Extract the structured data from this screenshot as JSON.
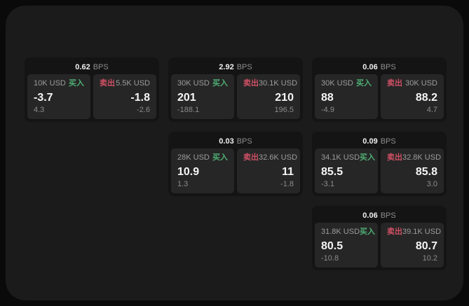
{
  "labels": {
    "bps": "BPS",
    "buy": "买入",
    "sell": "卖出"
  },
  "colors": {
    "buy": "#4fae74",
    "sell": "#cf5065",
    "page_background": "#0a0a0a",
    "window_background": "#1b1b1b",
    "card_background": "#141414",
    "panel_background": "#262626"
  },
  "cards": [
    {
      "grid": {
        "row": 1,
        "col": 1
      },
      "bps": "0.62",
      "buy": {
        "amount": "10K USD",
        "value": "-3.7",
        "delta": "4.3"
      },
      "sell": {
        "amount": "5.5K USD",
        "value": "-1.8",
        "delta": "-2.6"
      }
    },
    {
      "grid": {
        "row": 1,
        "col": 2
      },
      "bps": "2.92",
      "buy": {
        "amount": "30K USD",
        "value": "201",
        "delta": "-188.1"
      },
      "sell": {
        "amount": "30.1K USD",
        "value": "210",
        "delta": "196.5"
      }
    },
    {
      "grid": {
        "row": 1,
        "col": 3
      },
      "bps": "0.06",
      "buy": {
        "amount": "30K USD",
        "value": "88",
        "delta": "-4.9"
      },
      "sell": {
        "amount": "30K USD",
        "value": "88.2",
        "delta": "4.7"
      }
    },
    {
      "grid": {
        "row": 2,
        "col": 2
      },
      "bps": "0.03",
      "buy": {
        "amount": "28K USD",
        "value": "10.9",
        "delta": "1.3"
      },
      "sell": {
        "amount": "32.6K USD",
        "value": "11",
        "delta": "-1.8"
      }
    },
    {
      "grid": {
        "row": 2,
        "col": 3
      },
      "bps": "0.09",
      "buy": {
        "amount": "34.1K USD",
        "value": "85.5",
        "delta": "-3.1"
      },
      "sell": {
        "amount": "32.8K USD",
        "value": "85.8",
        "delta": "3.0"
      }
    },
    {
      "grid": {
        "row": 3,
        "col": 3
      },
      "bps": "0.06",
      "buy": {
        "amount": "31.8K USD",
        "value": "80.5",
        "delta": "-10.8"
      },
      "sell": {
        "amount": "39.1K USD",
        "value": "80.7",
        "delta": "10.2"
      }
    }
  ]
}
